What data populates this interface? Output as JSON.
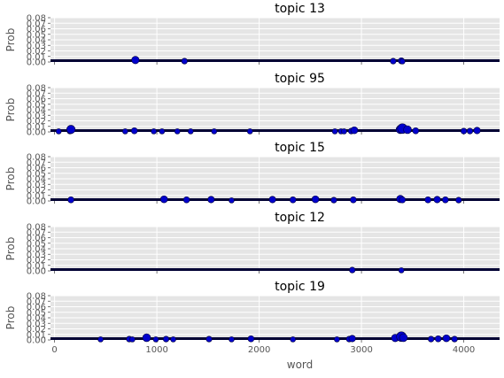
{
  "chart_data": {
    "type": "scatter",
    "xlabel": "word",
    "ylabel": "Prob",
    "xlim": [
      -40,
      4350
    ],
    "ylim": [
      0.0,
      0.08
    ],
    "xticks": [
      0,
      1000,
      2000,
      3000,
      4000
    ],
    "yticks": [
      0.0,
      0.01,
      0.02,
      0.03,
      0.04,
      0.05,
      0.06,
      0.07,
      0.08
    ],
    "ytick_labels": [
      "0.00",
      "0.01",
      "0.02",
      "0.03",
      "0.04",
      "0.05",
      "0.06",
      "0.07",
      "0.08"
    ],
    "grid": true,
    "style": "ggplot",
    "point_color": "#0000cc",
    "baseline_color": "#000033",
    "subplots": [
      {
        "title": "topic 13",
        "points": [
          [
            790,
            0.0035
          ],
          [
            1270,
            0.0015
          ],
          [
            3310,
            0.0015
          ],
          [
            3390,
            0.002
          ],
          [
            3400,
            0.001
          ]
        ]
      },
      {
        "title": "topic 95",
        "points": [
          [
            40,
            0.001
          ],
          [
            150,
            0.0015
          ],
          [
            160,
            0.0045
          ],
          [
            690,
            0.001
          ],
          [
            780,
            0.002
          ],
          [
            970,
            0.001
          ],
          [
            1050,
            0.001
          ],
          [
            1200,
            0.001
          ],
          [
            1330,
            0.001
          ],
          [
            1560,
            0.001
          ],
          [
            1910,
            0.001
          ],
          [
            2740,
            0.001
          ],
          [
            2800,
            0.001
          ],
          [
            2830,
            0.001
          ],
          [
            2900,
            0.0015
          ],
          [
            2930,
            0.003
          ],
          [
            3380,
            0.0045
          ],
          [
            3400,
            0.006
          ],
          [
            3450,
            0.004
          ],
          [
            3530,
            0.002
          ],
          [
            4000,
            0.0015
          ],
          [
            4060,
            0.0015
          ],
          [
            4130,
            0.0025
          ]
        ]
      },
      {
        "title": "topic 15",
        "points": [
          [
            160,
            0.002
          ],
          [
            1070,
            0.003
          ],
          [
            1290,
            0.002
          ],
          [
            1530,
            0.0025
          ],
          [
            1730,
            0.001
          ],
          [
            2130,
            0.0025
          ],
          [
            2330,
            0.002
          ],
          [
            2550,
            0.003
          ],
          [
            2730,
            0.0015
          ],
          [
            2920,
            0.002
          ],
          [
            3380,
            0.0035
          ],
          [
            3400,
            0.002
          ],
          [
            3650,
            0.002
          ],
          [
            3740,
            0.0025
          ],
          [
            3820,
            0.002
          ],
          [
            3950,
            0.0015
          ]
        ]
      },
      {
        "title": "topic 12",
        "points": [
          [
            2910,
            0.0015
          ],
          [
            3390,
            0.001
          ]
        ]
      },
      {
        "title": "topic 19",
        "points": [
          [
            450,
            0.001
          ],
          [
            730,
            0.0015
          ],
          [
            760,
            0.001
          ],
          [
            900,
            0.004
          ],
          [
            990,
            0.001
          ],
          [
            1090,
            0.0015
          ],
          [
            1160,
            0.001
          ],
          [
            1510,
            0.0015
          ],
          [
            1730,
            0.001
          ],
          [
            1920,
            0.002
          ],
          [
            2330,
            0.001
          ],
          [
            2760,
            0.001
          ],
          [
            2880,
            0.0015
          ],
          [
            2910,
            0.0025
          ],
          [
            3330,
            0.0035
          ],
          [
            3390,
            0.006
          ],
          [
            3410,
            0.004
          ],
          [
            3680,
            0.0015
          ],
          [
            3750,
            0.002
          ],
          [
            3830,
            0.003
          ],
          [
            3910,
            0.0015
          ]
        ]
      }
    ]
  }
}
